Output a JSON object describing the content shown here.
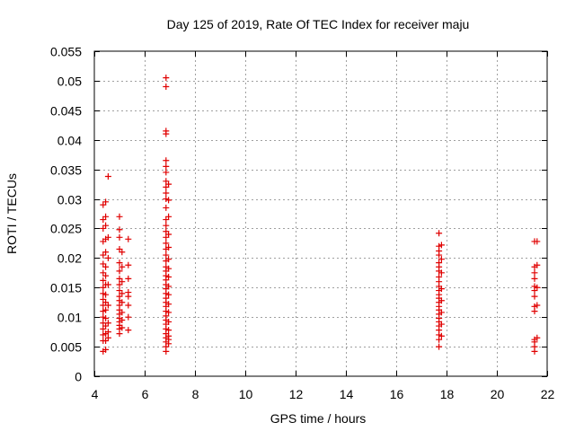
{
  "chart_data": {
    "type": "scatter",
    "title": "Day 125 of 2019, Rate Of TEC Index for receiver maju",
    "xlabel": "GPS time / hours",
    "ylabel": "ROTI / TECUs",
    "xlim": [
      4,
      22
    ],
    "ylim": [
      0,
      0.055
    ],
    "grid": true,
    "marker": "+",
    "marker_color": "#e00000",
    "x_ticks": [
      4,
      6,
      8,
      10,
      12,
      14,
      16,
      18,
      20,
      22
    ],
    "x_tick_labels": [
      "4",
      "6",
      "8",
      "10",
      "12",
      "14",
      "16",
      "18",
      "20",
      "22"
    ],
    "y_ticks": [
      0,
      0.005,
      0.01,
      0.015,
      0.02,
      0.025,
      0.03,
      0.035,
      0.04,
      0.045,
      0.05,
      0.055
    ],
    "y_tick_labels": [
      "0",
      "0.005",
      "0.01",
      "0.015",
      "0.02",
      "0.025",
      "0.03",
      "0.035",
      "0.04",
      "0.045",
      "0.05",
      "0.055"
    ],
    "series": [
      {
        "name": "ROTI",
        "points": [
          [
            4.35,
            0.029
          ],
          [
            4.35,
            0.0265
          ],
          [
            4.35,
            0.025
          ],
          [
            4.35,
            0.0228
          ],
          [
            4.35,
            0.0205
          ],
          [
            4.35,
            0.019
          ],
          [
            4.35,
            0.0175
          ],
          [
            4.35,
            0.0162
          ],
          [
            4.35,
            0.015
          ],
          [
            4.35,
            0.014
          ],
          [
            4.35,
            0.013
          ],
          [
            4.35,
            0.012
          ],
          [
            4.35,
            0.011
          ],
          [
            4.35,
            0.01
          ],
          [
            4.35,
            0.009
          ],
          [
            4.35,
            0.008
          ],
          [
            4.35,
            0.007
          ],
          [
            4.35,
            0.006
          ],
          [
            4.35,
            0.0042
          ],
          [
            4.45,
            0.0295
          ],
          [
            4.45,
            0.027
          ],
          [
            4.45,
            0.0255
          ],
          [
            4.45,
            0.0232
          ],
          [
            4.45,
            0.021
          ],
          [
            4.45,
            0.0185
          ],
          [
            4.45,
            0.017
          ],
          [
            4.45,
            0.0155
          ],
          [
            4.45,
            0.0138
          ],
          [
            4.45,
            0.0125
          ],
          [
            4.45,
            0.0112
          ],
          [
            4.45,
            0.0098
          ],
          [
            4.45,
            0.0085
          ],
          [
            4.45,
            0.0072
          ],
          [
            4.45,
            0.006
          ],
          [
            4.45,
            0.0045
          ],
          [
            4.55,
            0.0338
          ],
          [
            4.55,
            0.0235
          ],
          [
            4.55,
            0.02
          ],
          [
            4.55,
            0.0155
          ],
          [
            4.55,
            0.012
          ],
          [
            4.55,
            0.009
          ],
          [
            4.55,
            0.0075
          ],
          [
            4.55,
            0.0065
          ],
          [
            5.0,
            0.027
          ],
          [
            5.0,
            0.0248
          ],
          [
            5.0,
            0.0235
          ],
          [
            5.0,
            0.0215
          ],
          [
            5.0,
            0.0192
          ],
          [
            5.0,
            0.0178
          ],
          [
            5.0,
            0.0165
          ],
          [
            5.0,
            0.0155
          ],
          [
            5.0,
            0.0145
          ],
          [
            5.0,
            0.0135
          ],
          [
            5.0,
            0.0128
          ],
          [
            5.0,
            0.012
          ],
          [
            5.0,
            0.0112
          ],
          [
            5.0,
            0.0105
          ],
          [
            5.0,
            0.0098
          ],
          [
            5.0,
            0.0092
          ],
          [
            5.0,
            0.0086
          ],
          [
            5.0,
            0.008
          ],
          [
            5.0,
            0.0072
          ],
          [
            5.1,
            0.021
          ],
          [
            5.1,
            0.0185
          ],
          [
            5.1,
            0.016
          ],
          [
            5.1,
            0.014
          ],
          [
            5.1,
            0.0125
          ],
          [
            5.1,
            0.0108
          ],
          [
            5.1,
            0.0095
          ],
          [
            5.1,
            0.0082
          ],
          [
            5.35,
            0.0232
          ],
          [
            5.35,
            0.0188
          ],
          [
            5.35,
            0.0165
          ],
          [
            5.35,
            0.0142
          ],
          [
            5.35,
            0.0135
          ],
          [
            5.35,
            0.012
          ],
          [
            5.35,
            0.01
          ],
          [
            5.35,
            0.0078
          ],
          [
            6.85,
            0.0505
          ],
          [
            6.85,
            0.049
          ],
          [
            6.85,
            0.0415
          ],
          [
            6.85,
            0.041
          ],
          [
            6.85,
            0.0365
          ],
          [
            6.85,
            0.0355
          ],
          [
            6.85,
            0.0345
          ],
          [
            6.85,
            0.033
          ],
          [
            6.85,
            0.032
          ],
          [
            6.85,
            0.031
          ],
          [
            6.85,
            0.03
          ],
          [
            6.85,
            0.0285
          ],
          [
            6.85,
            0.0265
          ],
          [
            6.85,
            0.0255
          ],
          [
            6.85,
            0.0245
          ],
          [
            6.85,
            0.0235
          ],
          [
            6.85,
            0.0225
          ],
          [
            6.85,
            0.0215
          ],
          [
            6.85,
            0.0205
          ],
          [
            6.85,
            0.0195
          ],
          [
            6.85,
            0.0185
          ],
          [
            6.85,
            0.0178
          ],
          [
            6.85,
            0.017
          ],
          [
            6.85,
            0.0163
          ],
          [
            6.85,
            0.0155
          ],
          [
            6.85,
            0.0148
          ],
          [
            6.85,
            0.014
          ],
          [
            6.85,
            0.0132
          ],
          [
            6.85,
            0.0125
          ],
          [
            6.85,
            0.0118
          ],
          [
            6.85,
            0.011
          ],
          [
            6.85,
            0.0102
          ],
          [
            6.85,
            0.0095
          ],
          [
            6.85,
            0.0088
          ],
          [
            6.85,
            0.008
          ],
          [
            6.85,
            0.0072
          ],
          [
            6.85,
            0.0065
          ],
          [
            6.85,
            0.0058
          ],
          [
            6.85,
            0.005
          ],
          [
            6.85,
            0.0042
          ],
          [
            6.95,
            0.0325
          ],
          [
            6.95,
            0.0298
          ],
          [
            6.95,
            0.027
          ],
          [
            6.95,
            0.024
          ],
          [
            6.95,
            0.0218
          ],
          [
            6.95,
            0.0198
          ],
          [
            6.95,
            0.0182
          ],
          [
            6.95,
            0.0168
          ],
          [
            6.95,
            0.0152
          ],
          [
            6.95,
            0.0138
          ],
          [
            6.95,
            0.0122
          ],
          [
            6.95,
            0.0108
          ],
          [
            6.95,
            0.0092
          ],
          [
            6.95,
            0.0078
          ],
          [
            6.95,
            0.0068
          ],
          [
            6.95,
            0.0062
          ],
          [
            6.95,
            0.0055
          ],
          [
            17.7,
            0.0242
          ],
          [
            17.7,
            0.022
          ],
          [
            17.7,
            0.0212
          ],
          [
            17.7,
            0.0205
          ],
          [
            17.7,
            0.0192
          ],
          [
            17.7,
            0.0185
          ],
          [
            17.7,
            0.0178
          ],
          [
            17.7,
            0.0168
          ],
          [
            17.7,
            0.016
          ],
          [
            17.7,
            0.0152
          ],
          [
            17.7,
            0.0145
          ],
          [
            17.7,
            0.0138
          ],
          [
            17.7,
            0.0132
          ],
          [
            17.7,
            0.0125
          ],
          [
            17.7,
            0.0118
          ],
          [
            17.7,
            0.0112
          ],
          [
            17.7,
            0.0105
          ],
          [
            17.7,
            0.0098
          ],
          [
            17.7,
            0.0092
          ],
          [
            17.7,
            0.0085
          ],
          [
            17.7,
            0.0078
          ],
          [
            17.7,
            0.007
          ],
          [
            17.7,
            0.0062
          ],
          [
            17.7,
            0.005
          ],
          [
            17.8,
            0.0222
          ],
          [
            17.8,
            0.0198
          ],
          [
            17.8,
            0.0175
          ],
          [
            17.8,
            0.0148
          ],
          [
            17.8,
            0.0128
          ],
          [
            17.8,
            0.0108
          ],
          [
            17.8,
            0.0088
          ],
          [
            17.8,
            0.0068
          ],
          [
            21.5,
            0.0228
          ],
          [
            21.5,
            0.0185
          ],
          [
            21.5,
            0.0175
          ],
          [
            21.5,
            0.0165
          ],
          [
            21.5,
            0.0152
          ],
          [
            21.5,
            0.0145
          ],
          [
            21.5,
            0.0135
          ],
          [
            21.5,
            0.0118
          ],
          [
            21.5,
            0.011
          ],
          [
            21.5,
            0.0062
          ],
          [
            21.5,
            0.0058
          ],
          [
            21.5,
            0.005
          ],
          [
            21.5,
            0.0042
          ],
          [
            21.6,
            0.0228
          ],
          [
            21.6,
            0.0188
          ],
          [
            21.6,
            0.015
          ],
          [
            21.6,
            0.012
          ],
          [
            21.6,
            0.0065
          ]
        ]
      }
    ]
  }
}
